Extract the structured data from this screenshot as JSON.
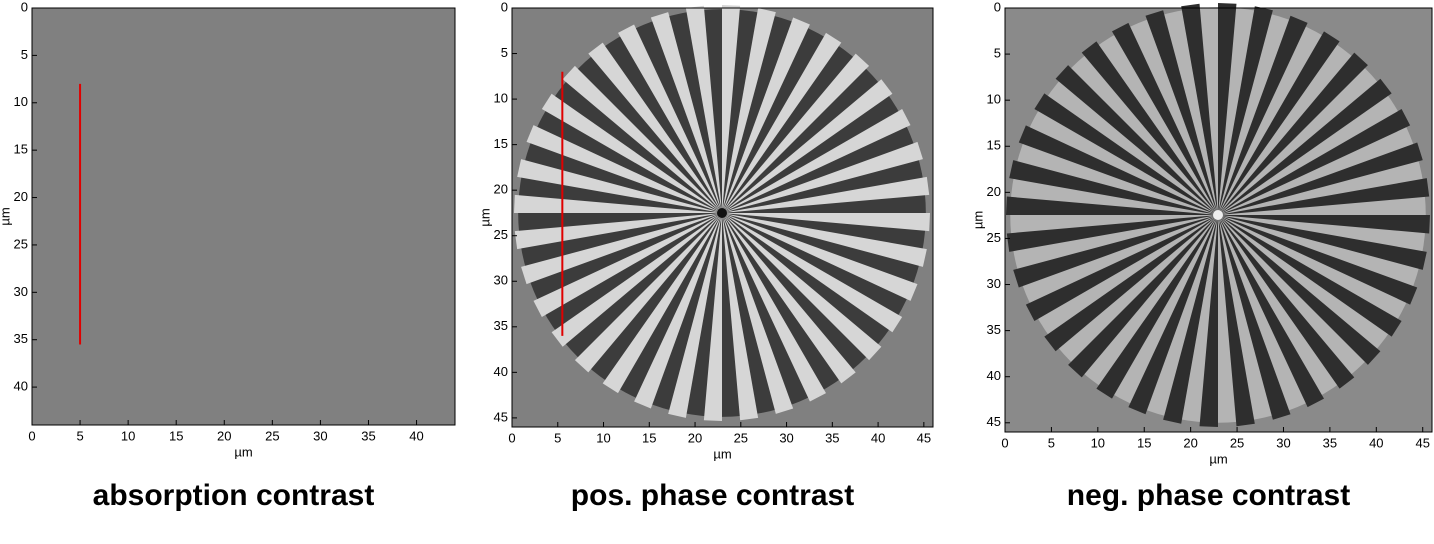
{
  "chart_data": [
    {
      "type": "image",
      "title": "absorption contrast",
      "xlabel": "µm",
      "ylabel": "µm",
      "xlim": [
        0,
        44
      ],
      "ylim": [
        0,
        44
      ],
      "xticks": [
        0,
        5,
        10,
        15,
        20,
        25,
        30,
        35,
        40
      ],
      "yticks": [
        0,
        5,
        10,
        15,
        20,
        25,
        30,
        35,
        40
      ],
      "profile_line": {
        "x": [
          5,
          5
        ],
        "y": [
          8,
          35.5
        ],
        "color": "#e00000"
      }
    },
    {
      "type": "image",
      "title": "pos. phase contrast",
      "xlabel": "µm",
      "ylabel": "µm",
      "xlim": [
        0,
        46
      ],
      "ylim": [
        0,
        46
      ],
      "xticks": [
        0,
        5,
        10,
        15,
        20,
        25,
        30,
        35,
        40,
        45
      ],
      "yticks": [
        0,
        5,
        10,
        15,
        20,
        25,
        30,
        35,
        40,
        45
      ],
      "profile_line": {
        "x": [
          5.5,
          5.5
        ],
        "y": [
          7,
          36
        ],
        "color": "#e00000"
      }
    },
    {
      "type": "image",
      "title": "neg. phase contrast",
      "xlabel": "µm",
      "ylabel": "µm",
      "xlim": [
        0,
        46
      ],
      "ylim": [
        0,
        46
      ],
      "xticks": [
        0,
        5,
        10,
        15,
        20,
        25,
        30,
        35,
        40,
        45
      ],
      "yticks": [
        0,
        5,
        10,
        15,
        20,
        25,
        30,
        35,
        40,
        45
      ]
    }
  ]
}
